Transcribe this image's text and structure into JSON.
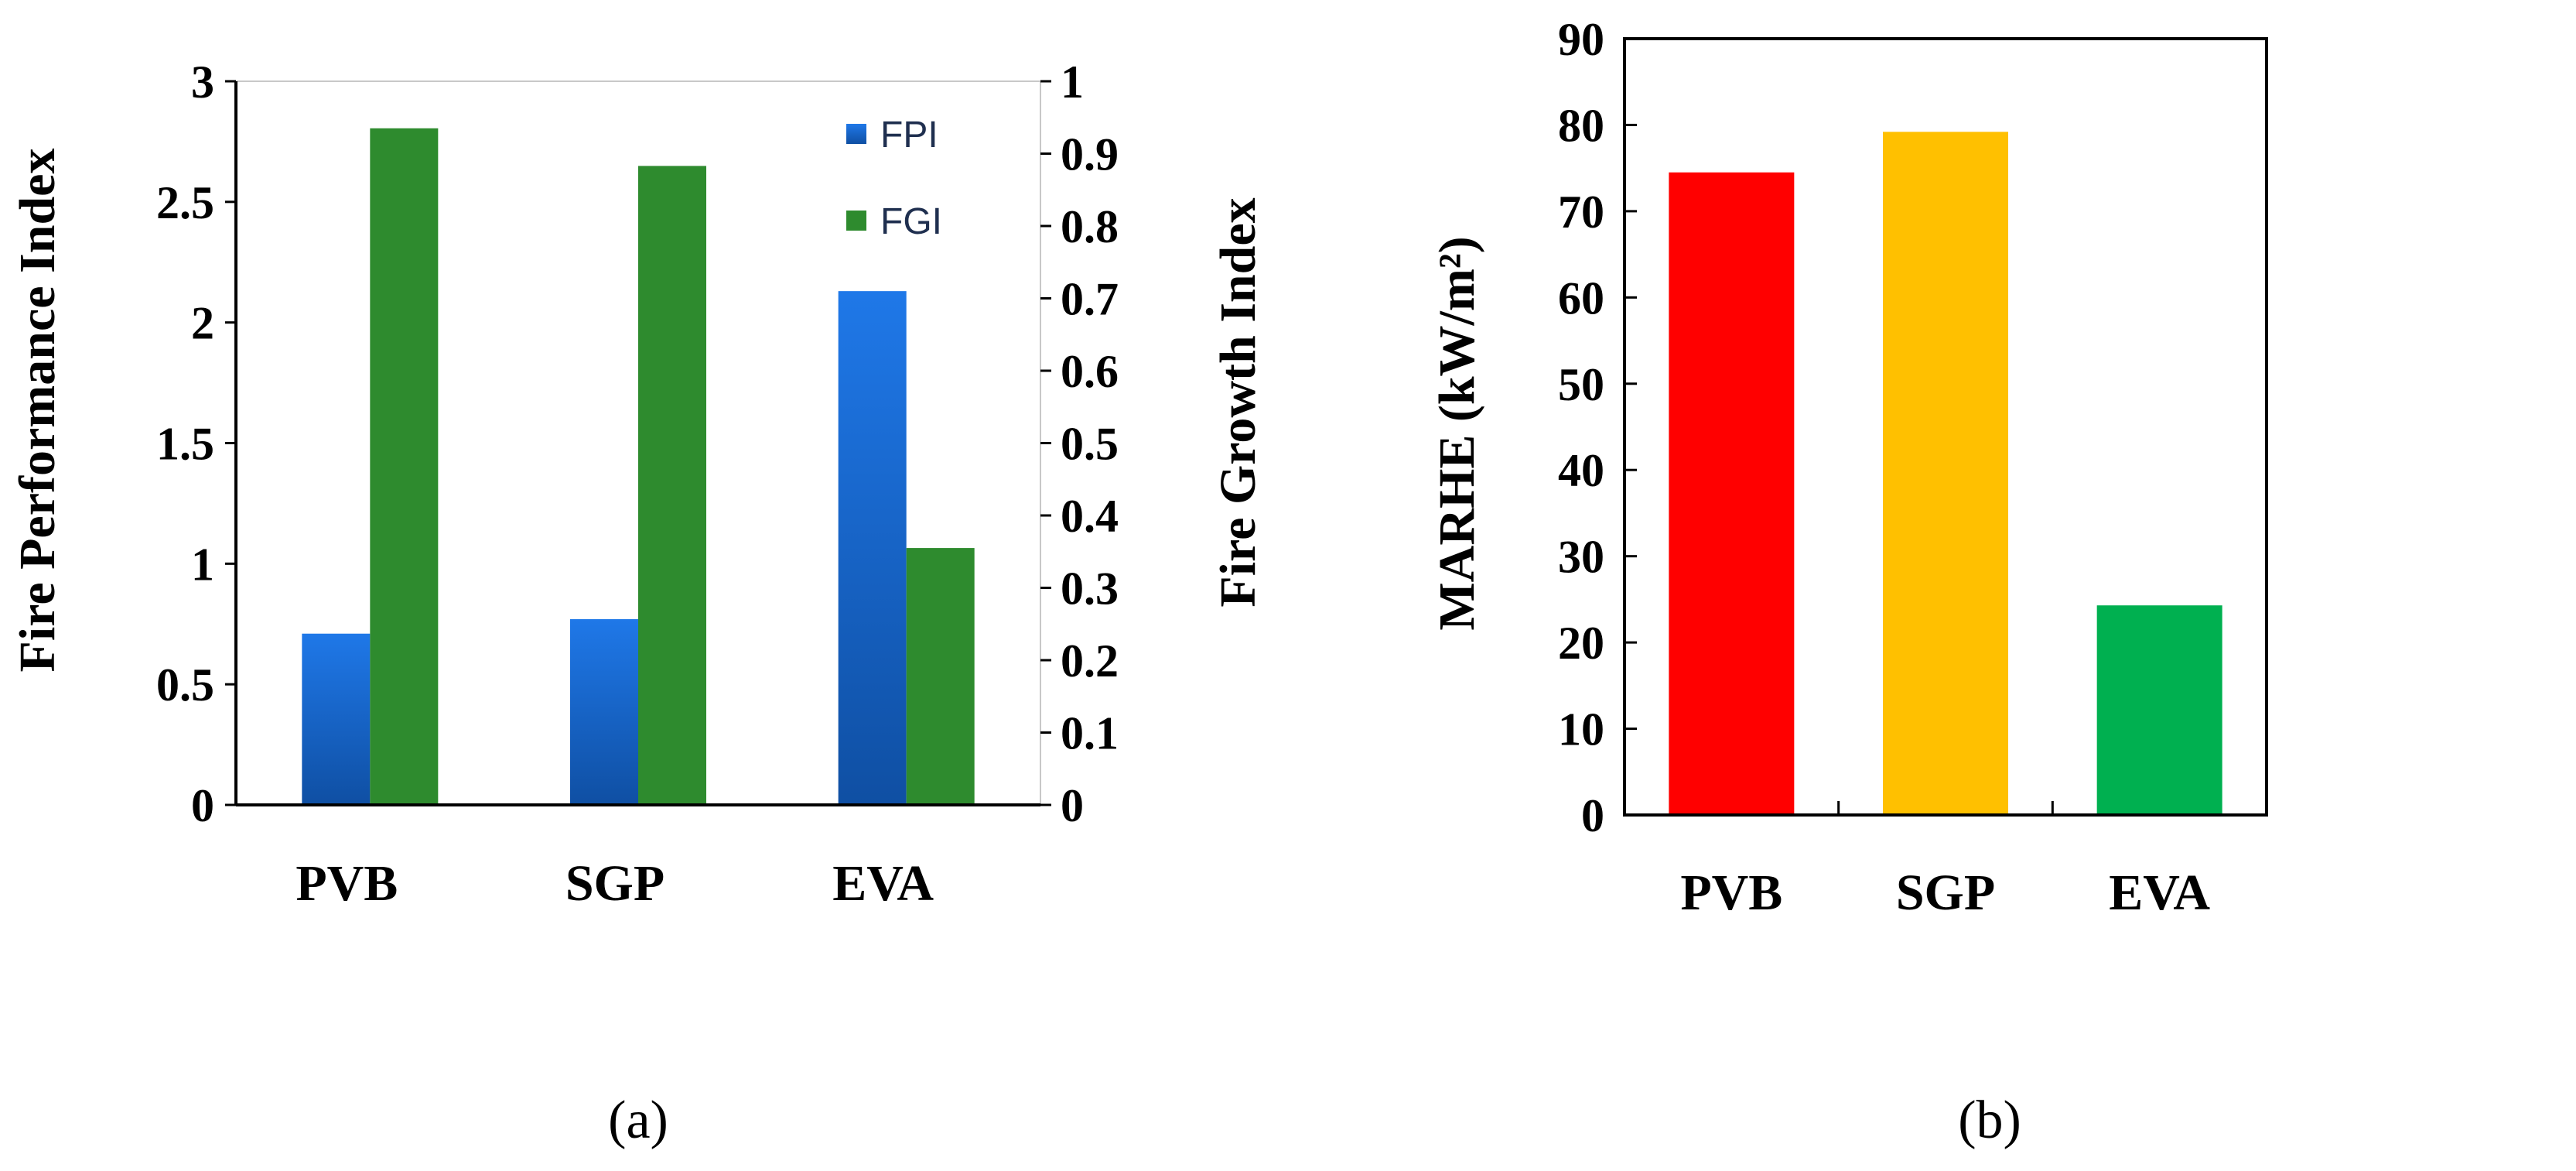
{
  "chart_data": [
    {
      "type": "bar",
      "panel_label": "(a)",
      "categories": [
        "PVB",
        "SGP",
        "EVA"
      ],
      "series": [
        {
          "name": "FPI",
          "axis": "left",
          "color": "#1a66d6",
          "values": [
            0.71,
            0.77,
            2.13
          ]
        },
        {
          "name": "FGI",
          "axis": "right",
          "color": "#2e8b2e",
          "values": [
            0.935,
            0.883,
            0.355
          ]
        }
      ],
      "ylabel": "Fire Performance Index",
      "ylim": [
        0,
        3
      ],
      "yticks": [
        "0",
        "0.5",
        "1",
        "1.5",
        "2",
        "2.5",
        "3"
      ],
      "y2label": "Fire Growth Index",
      "y2lim": [
        0,
        1
      ],
      "y2ticks": [
        "0",
        "0.1",
        "0.2",
        "0.3",
        "0.4",
        "0.5",
        "0.6",
        "0.7",
        "0.8",
        "0.9",
        "1"
      ],
      "legend_position": "top-right",
      "grid": false
    },
    {
      "type": "bar",
      "panel_label": "(b)",
      "categories": [
        "PVB",
        "SGP",
        "EVA"
      ],
      "values": [
        74.5,
        79.2,
        24.3
      ],
      "colors": [
        "#ff0000",
        "#ffc000",
        "#00b050"
      ],
      "ylabel": "MARHE (kW/m²)",
      "ylim": [
        0,
        90
      ],
      "yticks": [
        "0",
        "10",
        "20",
        "30",
        "40",
        "50",
        "60",
        "70",
        "80",
        "90"
      ],
      "grid": false
    }
  ]
}
